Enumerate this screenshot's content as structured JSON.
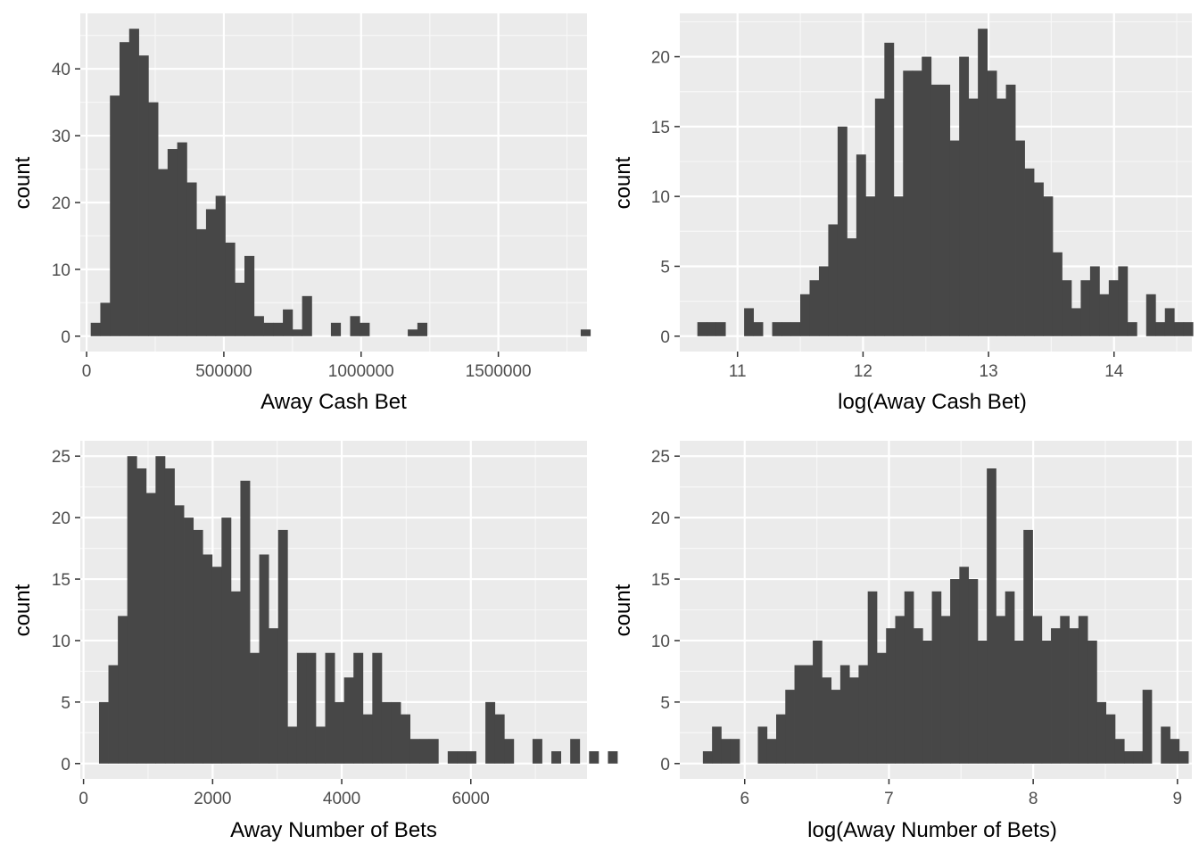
{
  "colors": {
    "panel": "#EBEBEB",
    "grid_major": "#FFFFFF",
    "grid_minor": "#F7F7F7",
    "bar": "#474747",
    "text": "#4D4D4D",
    "title": "#000000"
  },
  "chart_data": [
    {
      "type": "bar",
      "title": "",
      "xlabel": "Away Cash Bet",
      "ylabel": "count",
      "xlim": [
        -23000,
        1823000
      ],
      "ylim": [
        -2.3,
        48.3
      ],
      "xticks": [
        0,
        500000,
        1000000,
        1500000
      ],
      "xtick_labels": [
        "0",
        "500000",
        "1000000",
        "1500000"
      ],
      "yticks": [
        0,
        10,
        20,
        30,
        40
      ],
      "ytick_labels": [
        "0",
        "10",
        "20",
        "30",
        "40"
      ],
      "bin_start": 15000,
      "bin_width": 35000,
      "counts": [
        2,
        5,
        36,
        44,
        46,
        42,
        35,
        25,
        28,
        29,
        23,
        16,
        19,
        21,
        14,
        8,
        12,
        3,
        2,
        2,
        4,
        1,
        6,
        0,
        0,
        2,
        0,
        3,
        2,
        0,
        0,
        0,
        0,
        1,
        2,
        0,
        0,
        0,
        0,
        0,
        0,
        0,
        0,
        0,
        0,
        0,
        0,
        0,
        0,
        0,
        0,
        1
      ],
      "grid": true,
      "legend": "none"
    },
    {
      "type": "bar",
      "title": "",
      "xlabel": "log(Away Cash Bet)",
      "ylabel": "count",
      "xlim": [
        10.54,
        14.62
      ],
      "ylim": [
        -1.1,
        23.1
      ],
      "xticks": [
        11,
        12,
        13,
        14
      ],
      "xtick_labels": [
        "11",
        "12",
        "13",
        "14"
      ],
      "yticks": [
        0,
        5,
        10,
        15,
        20
      ],
      "yticks_labels_note": "",
      "ytick_labels": [
        "0",
        "5",
        "10",
        "15",
        "20"
      ],
      "bin_start": 10.68,
      "bin_width": 0.0745,
      "counts": [
        1,
        1,
        1,
        0,
        0,
        2,
        1,
        0,
        1,
        1,
        1,
        3,
        4,
        5,
        8,
        15,
        7,
        13,
        10,
        17,
        21,
        10,
        19,
        19,
        20,
        18,
        18,
        14,
        20,
        17,
        22,
        19,
        17,
        18,
        14,
        12,
        11,
        10,
        6,
        4,
        2,
        4,
        5,
        3,
        4,
        5,
        1,
        0,
        3,
        1,
        2,
        1,
        1,
        0,
        3,
        0,
        0,
        0,
        0,
        0,
        0,
        0,
        0,
        0,
        0,
        0,
        0,
        0,
        0,
        0,
        0,
        1
      ],
      "grid": true,
      "legend": "none"
    },
    {
      "type": "bar",
      "title": "",
      "xlabel": "Away Number of Bets",
      "ylabel": "count",
      "xlim": [
        -50,
        7800
      ],
      "ylim": [
        -1.25,
        26.25
      ],
      "xticks": [
        0,
        2000,
        4000,
        6000
      ],
      "xtick_labels": [
        "0",
        "2000",
        "4000",
        "6000"
      ],
      "yticks": [
        0,
        5,
        10,
        15,
        20,
        25
      ],
      "ytick_labels": [
        "0",
        "5",
        "10",
        "15",
        "20",
        "25"
      ],
      "bin_start": 240,
      "bin_width": 146,
      "counts": [
        5,
        8,
        12,
        25,
        24,
        22,
        25,
        24,
        21,
        20,
        19,
        17,
        16,
        20,
        14,
        23,
        9,
        17,
        11,
        19,
        3,
        9,
        9,
        3,
        9,
        5,
        7,
        9,
        4,
        9,
        5,
        5,
        4,
        2,
        2,
        2,
        0,
        1,
        1,
        1,
        0,
        5,
        4,
        2,
        0,
        0,
        2,
        0,
        1,
        0,
        2,
        0,
        1,
        0,
        1,
        0,
        0,
        0,
        0,
        0,
        0,
        0,
        0
      ],
      "grid": true,
      "legend": "none"
    },
    {
      "type": "bar",
      "title": "",
      "xlabel": "log(Away Number of Bets)",
      "ylabel": "count",
      "xlim": [
        5.55,
        9.1
      ],
      "ylim": [
        -1.25,
        26.25
      ],
      "xticks": [
        6,
        7,
        8,
        9
      ],
      "xtick_labels": [
        "6",
        "7",
        "8",
        "9"
      ],
      "yticks": [
        0,
        5,
        10,
        15,
        20,
        25
      ],
      "ytick_labels": [
        "0",
        "5",
        "10",
        "15",
        "20",
        "25"
      ],
      "bin_start": 5.71,
      "bin_width": 0.0635,
      "counts": [
        1,
        3,
        2,
        2,
        0,
        0,
        3,
        2,
        4,
        6,
        8,
        8,
        10,
        7,
        6,
        8,
        7,
        8,
        14,
        9,
        11,
        12,
        14,
        11,
        10,
        14,
        12,
        15,
        16,
        15,
        10,
        24,
        12,
        14,
        10,
        19,
        12,
        10,
        11,
        12,
        11,
        12,
        10,
        5,
        4,
        2,
        1,
        1,
        6,
        0,
        3,
        2,
        1
      ],
      "grid": true,
      "legend": "none"
    }
  ]
}
